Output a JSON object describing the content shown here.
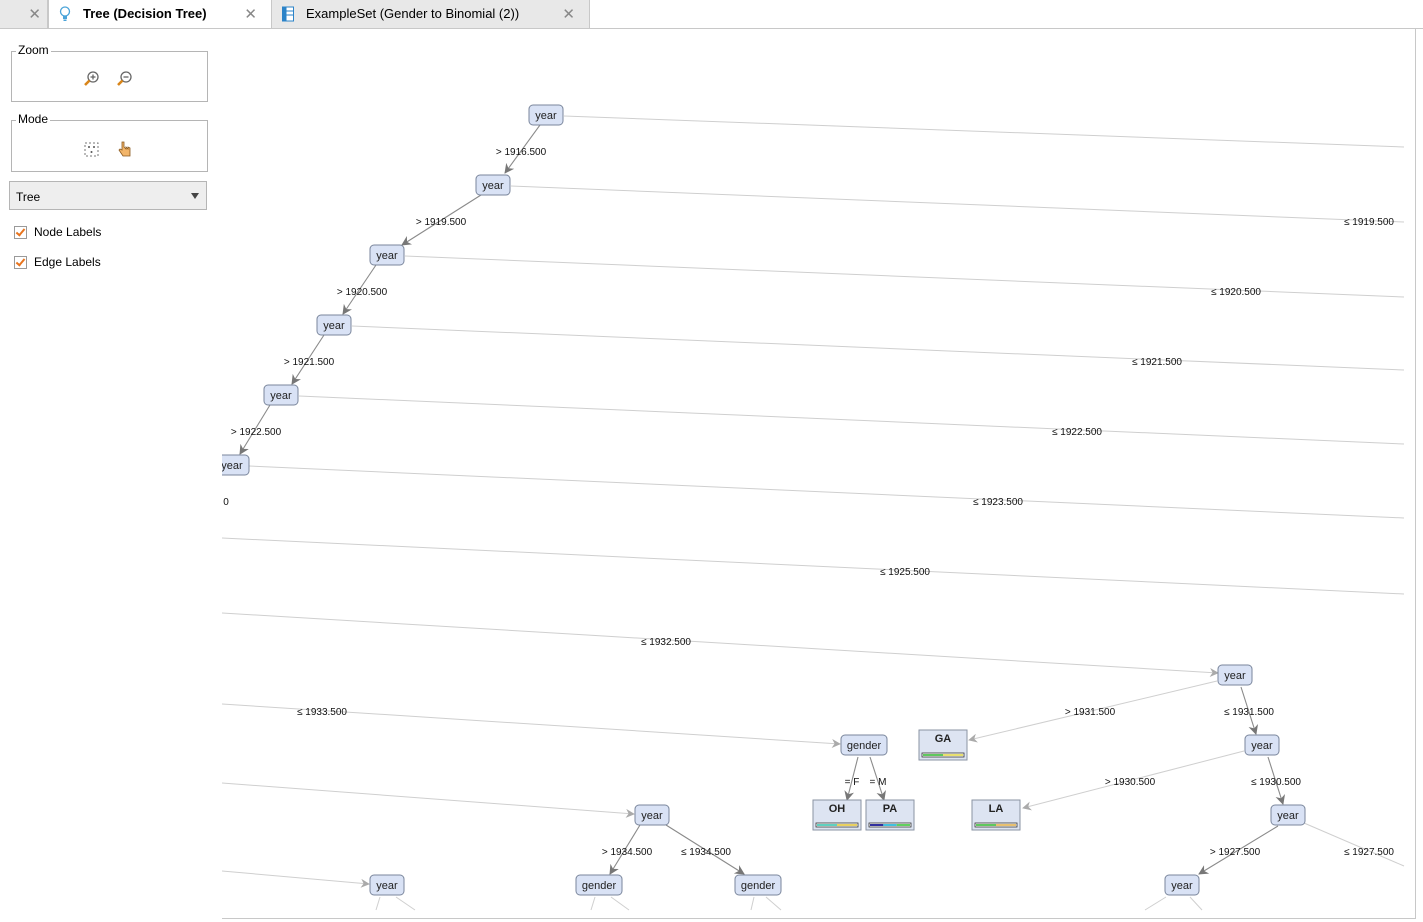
{
  "tabs": [
    {
      "label": "",
      "active": false
    },
    {
      "label": "Tree (Decision Tree)",
      "active": true
    },
    {
      "label": "ExampleSet (Gender to Binomial (2))",
      "active": false
    }
  ],
  "sidebar": {
    "zoom": {
      "title": "Zoom"
    },
    "mode": {
      "title": "Mode"
    },
    "layout_select": {
      "value": "Tree"
    },
    "node_labels": {
      "label": "Node Labels",
      "checked": true
    },
    "edge_labels": {
      "label": "Edge Labels",
      "checked": true
    }
  },
  "colors": {
    "node_fill": "#d9e2f5",
    "node_border": "#7a869c",
    "leaf_fill": "#dde4f2",
    "edge": "#c8c8c8",
    "accent_check": "#e8741e"
  },
  "tree": {
    "nodes": [
      {
        "id": "n1",
        "label": "year",
        "type": "split"
      },
      {
        "id": "n2",
        "label": "year",
        "type": "split"
      },
      {
        "id": "n3",
        "label": "year",
        "type": "split"
      },
      {
        "id": "n4",
        "label": "year",
        "type": "split"
      },
      {
        "id": "n5",
        "label": "year",
        "type": "split"
      },
      {
        "id": "n6",
        "label": "year",
        "type": "split",
        "clipped": true
      },
      {
        "id": "n7",
        "label": "year",
        "type": "split"
      },
      {
        "id": "n8",
        "label": "gender",
        "type": "split"
      },
      {
        "id": "n9",
        "label": "year",
        "type": "split"
      },
      {
        "id": "n10",
        "label": "year",
        "type": "split"
      },
      {
        "id": "n11",
        "label": "year",
        "type": "split"
      },
      {
        "id": "n12",
        "label": "gender",
        "type": "split"
      },
      {
        "id": "n13",
        "label": "gender",
        "type": "split"
      },
      {
        "id": "n14",
        "label": "year",
        "type": "split"
      },
      {
        "id": "n15",
        "label": "year",
        "type": "split"
      },
      {
        "id": "leafGA",
        "label": "GA",
        "type": "leaf",
        "bar": [
          "#5ec85e",
          "#e8e070"
        ]
      },
      {
        "id": "leafLA",
        "label": "LA",
        "type": "leaf",
        "bar": [
          "#5ec85e",
          "#e8c070"
        ]
      },
      {
        "id": "leafOH",
        "label": "OH",
        "type": "leaf",
        "bar": [
          "#5fd0c0",
          "#e8d060"
        ]
      },
      {
        "id": "leafPA",
        "label": "PA",
        "type": "leaf",
        "bar": [
          "#3030a0",
          "#40c0e0",
          "#60d060"
        ]
      }
    ],
    "edge_labels": [
      "> 1916.500",
      "> 1919.500",
      "> 1920.500",
      "> 1921.500",
      "> 1922.500",
      "0",
      "≤ 1919.500",
      "≤ 1920.500",
      "≤ 1921.500",
      "≤ 1922.500",
      "≤ 1923.500",
      "≤ 1925.500",
      "≤ 1932.500",
      "≤ 1933.500",
      "> 1931.500",
      "≤ 1931.500",
      "> 1930.500",
      "≤ 1930.500",
      "> 1927.500",
      "≤ 1927.500",
      "= F",
      "= M",
      "> 1934.500",
      "≤ 1934.500"
    ]
  }
}
